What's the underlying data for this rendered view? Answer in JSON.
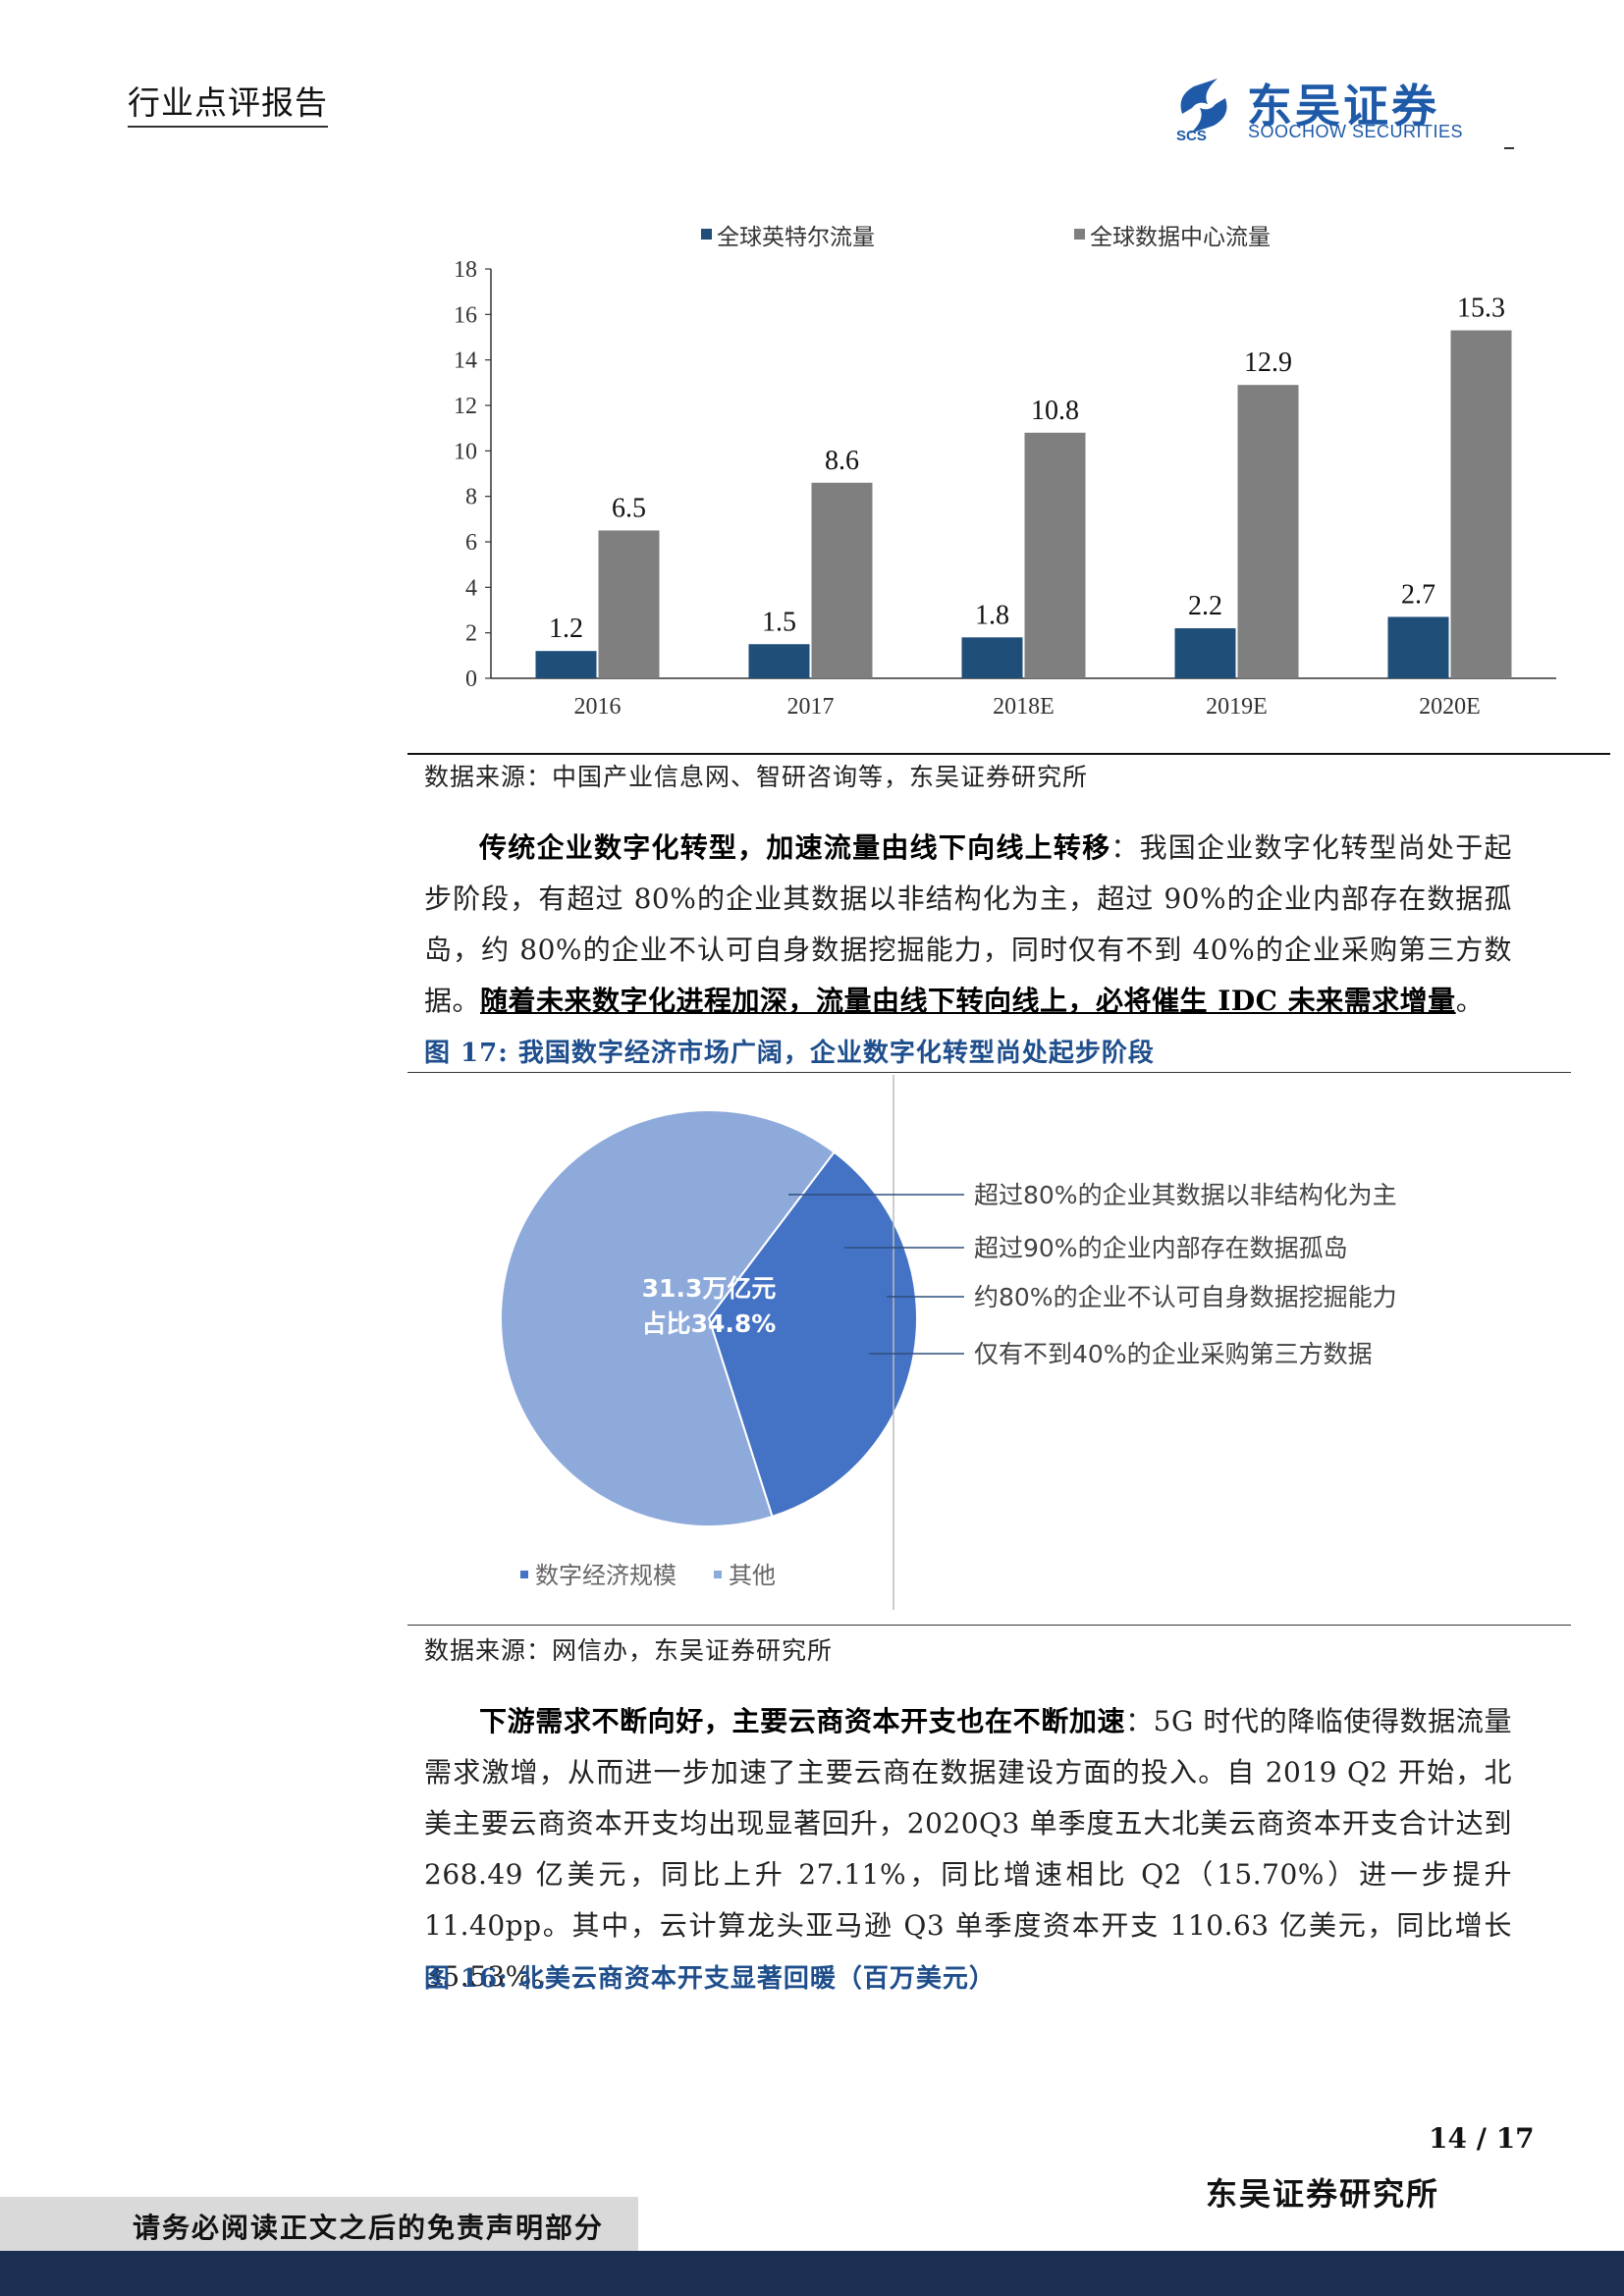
{
  "header": {
    "title": "行业点评报告",
    "logo_cn": "东吴证券",
    "logo_en": "SOOCHOW SECURITIES",
    "logo_mark": "SCS"
  },
  "chart_data": {
    "type": "bar",
    "categories": [
      "2016",
      "2017",
      "2018E",
      "2019E",
      "2020E"
    ],
    "series": [
      {
        "name": "全球英特尔流量",
        "values": [
          1.2,
          1.5,
          1.8,
          2.2,
          2.7
        ],
        "color": "#1f4e79"
      },
      {
        "name": "全球数据中心流量",
        "values": [
          6.5,
          8.6,
          10.8,
          12.9,
          15.3
        ],
        "color": "#7f7f7f"
      }
    ],
    "ylim": [
      0,
      18
    ],
    "yticks": [
      "0",
      "2",
      "4",
      "6",
      "8",
      "10",
      "12",
      "14",
      "16",
      "18"
    ],
    "data_labels": [
      [
        "1.2",
        "1.5",
        "1.8",
        "2.2",
        "2.7"
      ],
      [
        "6.5",
        "8.6",
        "10.8",
        "12.9",
        "15.3"
      ]
    ],
    "legend_position": "top",
    "grid": false
  },
  "source1": "数据来源：中国产业信息网、智研咨询等，东吴证券研究所",
  "para1": {
    "bold": "传统企业数字化转型，加速流量由线下向线上转移",
    "text": "：我国企业数字化转型尚处于起步阶段，有超过 80%的企业其数据以非结构化为主，超过 90%的企业内部存在数据孤岛，约 80%的企业不认可自身数据挖掘能力，同时仅有不到 40%的企业采购第三方数据。",
    "underline": "随着未来数字化进程加深，流量由线下转向线上，必将催生 IDC 未来需求增量",
    "end": "。"
  },
  "fig17_title": "图 17:  我国数字经济市场广阔，企业数字化转型尚处起步阶段",
  "pie": {
    "slices": [
      {
        "name": "数字经济规模",
        "value": 34.8,
        "color": "#4472c4"
      },
      {
        "name": "其他",
        "value": 65.2,
        "color": "#8eaadb"
      }
    ],
    "center_label_1": "31.3万亿元",
    "center_label_2": "占比34.8%",
    "callouts": [
      "超过80%的企业其数据以非结构化为主",
      "超过90%的企业内部存在数据孤岛",
      "约80%的企业不认可自身数据挖掘能力",
      "仅有不到40%的企业采购第三方数据"
    ],
    "legend": [
      "数字经济规模",
      "其他"
    ]
  },
  "source2": "数据来源：网信办，东吴证券研究所",
  "para2": {
    "bold": "下游需求不断向好，主要云商资本开支也在不断加速",
    "text": "：5G 时代的降临使得数据流量需求激增，从而进一步加速了主要云商在数据建设方面的投入。自 2019 Q2 开始，北美主要云商资本开支均出现显著回升，2020Q3 单季度五大北美云商资本开支合计达到 268.49 亿美元，同比上升 27.11%，同比增速相比 Q2（15.70%）进一步提升 11.40pp。其中，云计算龙头亚马逊 Q3 单季度资本开支 110.63 亿美元，同比增长 35.53%。"
  },
  "fig16_title": "图 16:   北美云商资本开支显著回暖（百万美元）",
  "footer": {
    "page": "14 / 17",
    "org": "东吴证券研究所",
    "disclaimer": "请务必阅读正文之后的免责声明部分"
  }
}
